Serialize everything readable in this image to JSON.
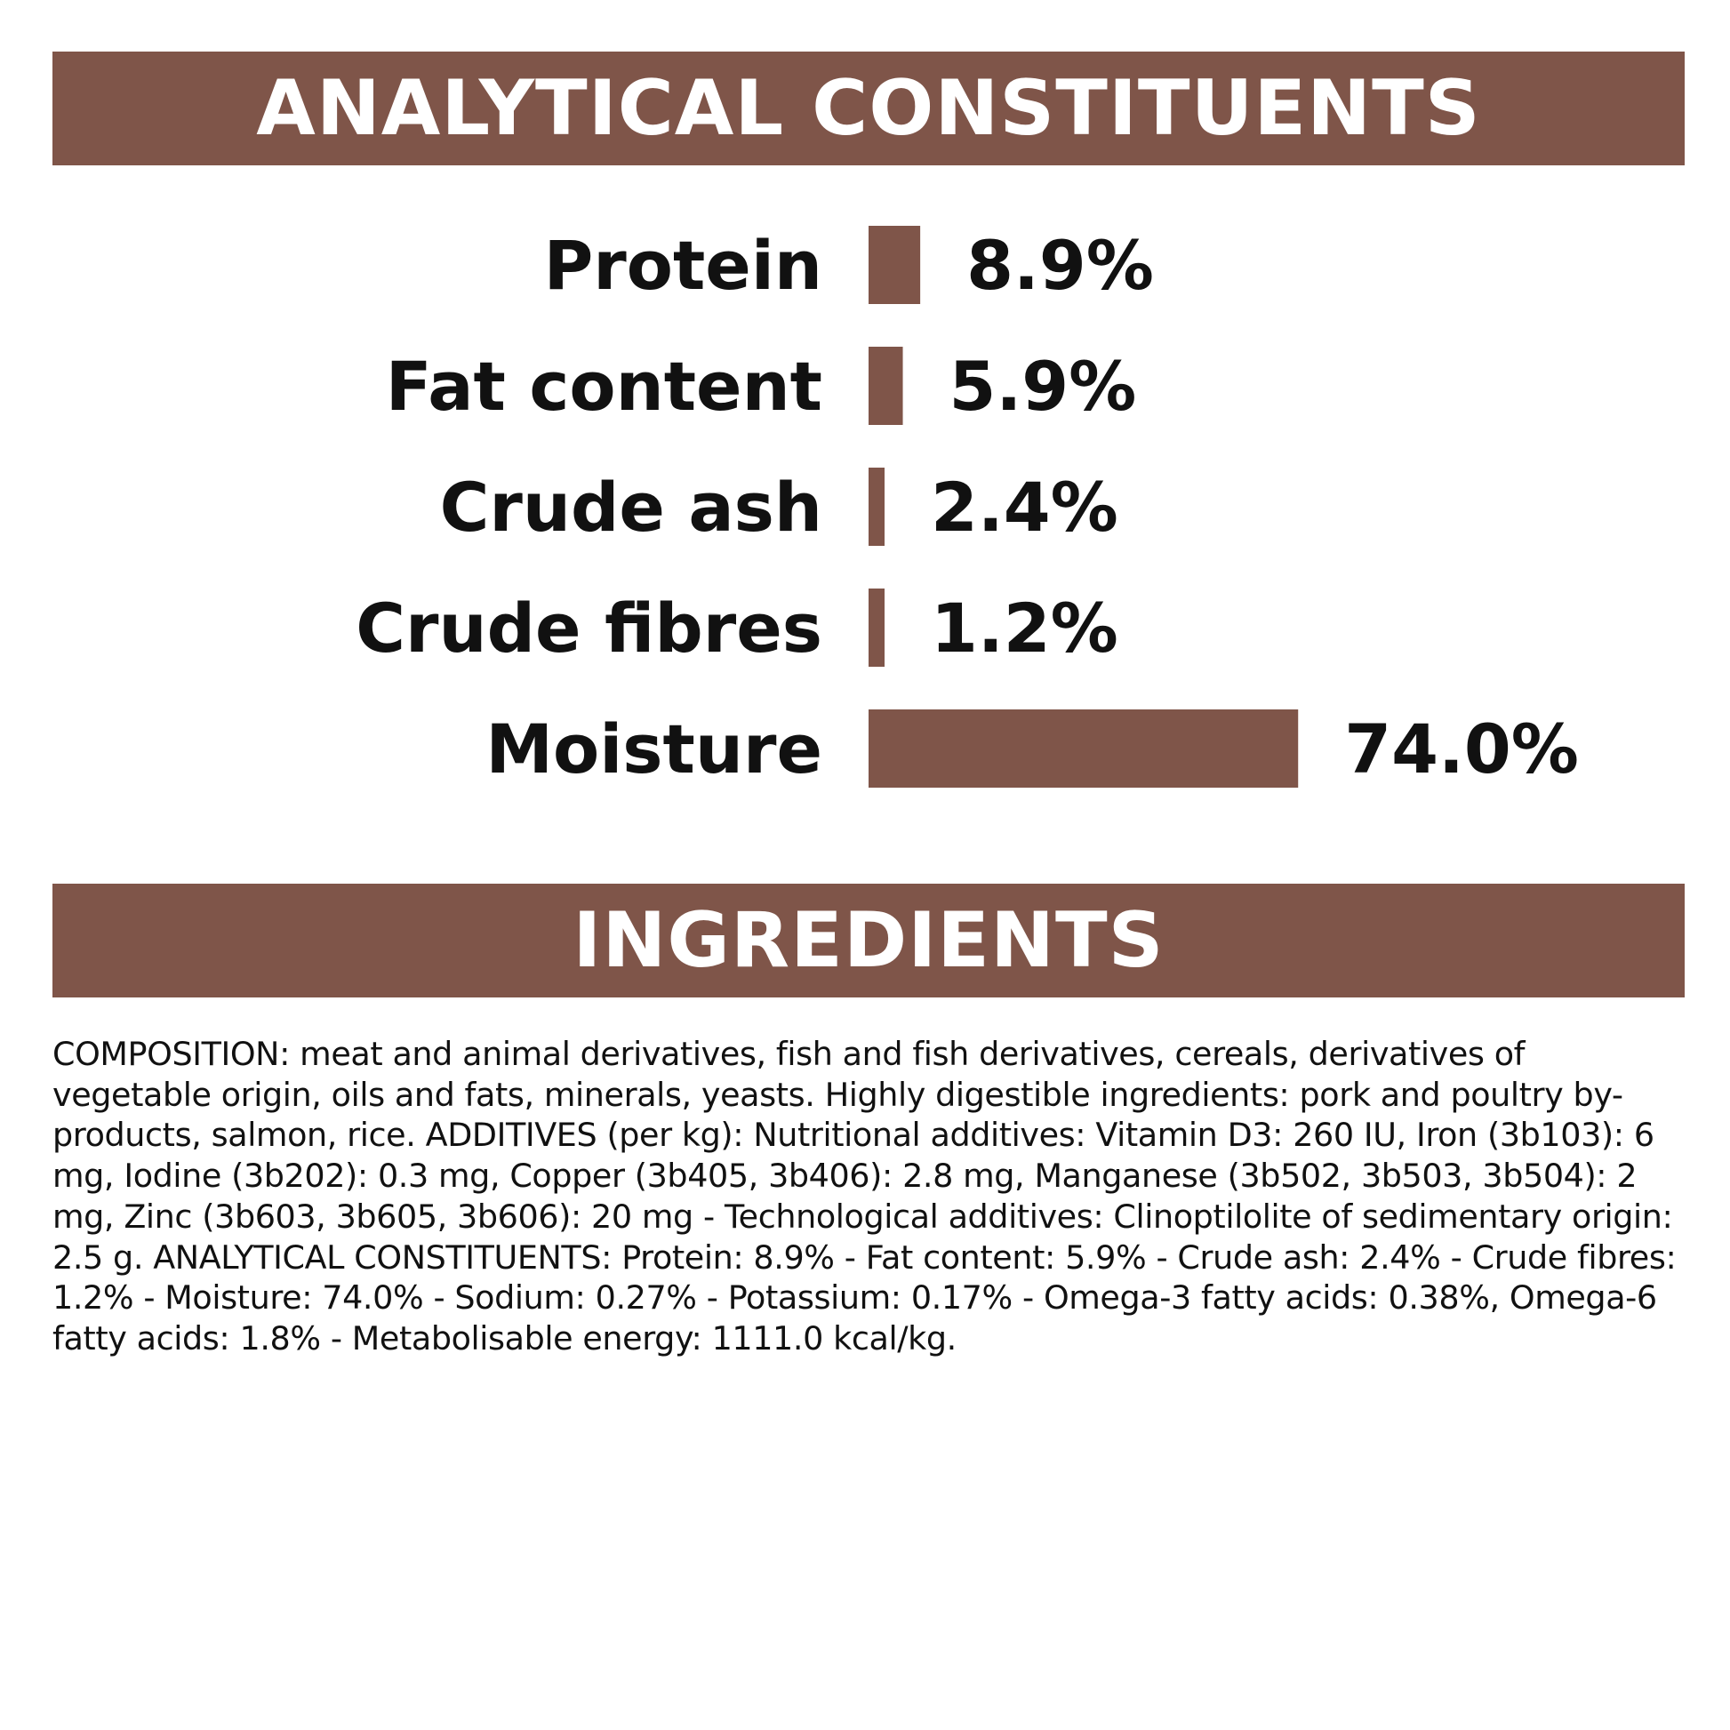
{
  "colors": {
    "accent": "#7f5549",
    "text": "#111111",
    "background": "#ffffff"
  },
  "sections": {
    "analytical_title": "ANALYTICAL CONSTITUENTS",
    "ingredients_title": "INGREDIENTS"
  },
  "chart_data": {
    "type": "bar",
    "orientation": "horizontal",
    "title": "ANALYTICAL CONSTITUENTS",
    "categories": [
      "Protein",
      "Fat content",
      "Crude ash",
      "Crude fibres",
      "Moisture"
    ],
    "values": [
      8.9,
      5.9,
      2.4,
      1.2,
      74.0
    ],
    "value_labels": [
      "8.9%",
      "5.9%",
      "2.4%",
      "1.2%",
      "74.0%"
    ],
    "unit": "%",
    "xlabel": "",
    "ylabel": "",
    "grid": false,
    "legend": "none"
  },
  "composition_text": "COMPOSITION: meat and animal derivatives, fish and fish derivatives, cereals, derivatives of vegetable origin, oils and fats, minerals, yeasts. Highly digestible ingredients: pork and poultry by-products, salmon, rice. ADDITIVES (per kg): Nutritional additives: Vitamin D3: 260 IU, Iron (3b103): 6 mg, Iodine (3b202): 0.3 mg, Copper (3b405, 3b406): 2.8 mg, Manganese (3b502, 3b503, 3b504): 2 mg, Zinc (3b603, 3b605, 3b606): 20 mg - Technological additives: Clinoptilolite of sedimentary origin: 2.5 g. ANALYTICAL CONSTITUENTS: Protein: 8.9% - Fat content: 5.9% - Crude ash: 2.4% - Crude fibres: 1.2% - Moisture: 74.0% - Sodium: 0.27% - Potassium: 0.17% - Omega-3 fatty acids: 0.38%, Omega-6 fatty acids: 1.8% - Metabolisable energy: 1111.0 kcal/kg."
}
